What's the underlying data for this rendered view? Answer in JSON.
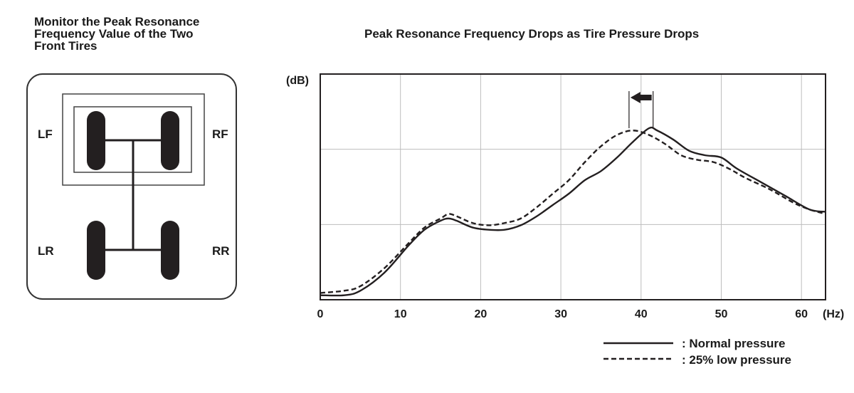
{
  "left_panel": {
    "title_lines": [
      "Monitor the Peak Resonance",
      "Frequency Value of the Two",
      "Front Tires"
    ],
    "tires": {
      "lf": "LF",
      "rf": "RF",
      "lr": "LR",
      "rr": "RR"
    }
  },
  "chart_data": {
    "type": "line",
    "title": "Peak Resonance Frequency Drops as Tire Pressure Drops",
    "xlabel": "(Hz)",
    "ylabel": "(dB)",
    "xlim": [
      0,
      63
    ],
    "ylim": [
      0,
      1
    ],
    "xticks": [
      "0",
      "10",
      "20",
      "30",
      "40",
      "50",
      "60"
    ],
    "grid": true,
    "series": [
      {
        "name": ": Normal pressure",
        "style": "solid",
        "x": [
          0,
          3,
          5,
          8,
          11,
          13,
          15,
          16,
          17,
          19,
          21,
          23,
          25,
          27,
          29,
          31,
          33,
          35,
          37,
          39,
          41,
          42,
          44,
          46,
          48,
          50,
          52,
          55,
          58,
          61,
          63
        ],
        "y": [
          0.02,
          0.02,
          0.04,
          0.12,
          0.24,
          0.31,
          0.35,
          0.36,
          0.35,
          0.32,
          0.31,
          0.31,
          0.33,
          0.37,
          0.42,
          0.47,
          0.53,
          0.57,
          0.63,
          0.7,
          0.76,
          0.75,
          0.71,
          0.66,
          0.64,
          0.63,
          0.58,
          0.52,
          0.46,
          0.4,
          0.39
        ]
      },
      {
        "name": ": 25% low pressure",
        "style": "dashed",
        "x": [
          0,
          3,
          5,
          8,
          11,
          13,
          15,
          16,
          17,
          19,
          21,
          23,
          25,
          27,
          29,
          31,
          33,
          35,
          37,
          39,
          41,
          43,
          45,
          47,
          49,
          51,
          53,
          56,
          59,
          61,
          63
        ],
        "y": [
          0.03,
          0.04,
          0.06,
          0.14,
          0.25,
          0.32,
          0.36,
          0.38,
          0.37,
          0.34,
          0.33,
          0.34,
          0.36,
          0.41,
          0.47,
          0.53,
          0.61,
          0.68,
          0.73,
          0.75,
          0.73,
          0.69,
          0.64,
          0.62,
          0.61,
          0.58,
          0.54,
          0.49,
          0.43,
          0.4,
          0.38
        ]
      }
    ],
    "annotation": {
      "from_hz": 41.5,
      "to_hz": 38.5,
      "direction": "left"
    }
  },
  "legend": {
    "normal": ": Normal pressure",
    "low": ": 25% low pressure"
  }
}
